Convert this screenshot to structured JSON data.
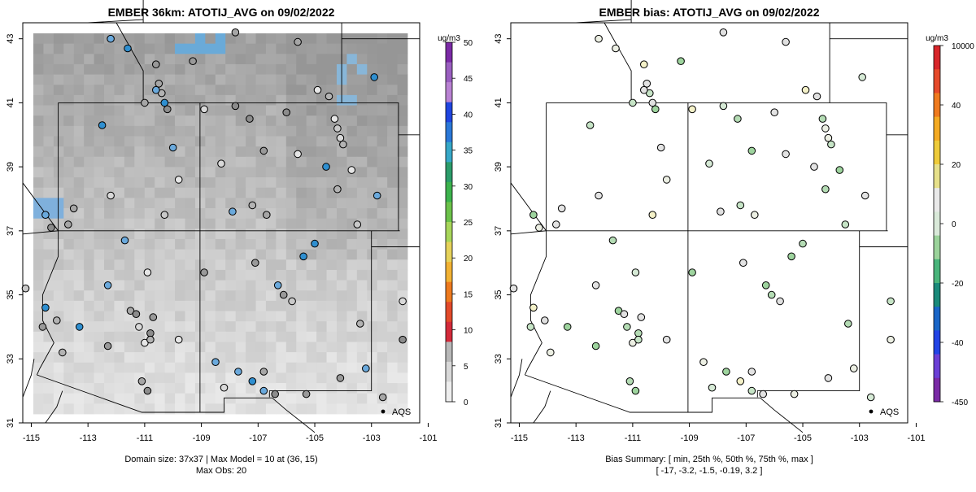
{
  "left": {
    "title": "EMBER 36km: ATOTIJ_AVG on 09/02/2022",
    "x_ticks": [
      "-115",
      "-113",
      "-111",
      "-109",
      "-107",
      "-105",
      "-103",
      "-101"
    ],
    "y_ticks": [
      "43",
      "41",
      "39",
      "37",
      "35",
      "33",
      "31"
    ],
    "caption_line1": "Domain size: 37x37 | Max Model = 10 at (36, 15)",
    "caption_line2": "Max Obs: 20",
    "legend_label": "AQS",
    "colorbar": {
      "unit": "ug/m3",
      "labels": [
        "50",
        "45",
        "40",
        "35",
        "30",
        "25",
        "20",
        "15",
        "10",
        "5",
        "0"
      ],
      "colors": [
        "#7b2aa6",
        "#9a5fc0",
        "#b982d3",
        "#1f45e0",
        "#2a78d8",
        "#36a8c8",
        "#2b9c6a",
        "#3cb34d",
        "#6cc24a",
        "#a8d65a",
        "#e6d25a",
        "#f2b233",
        "#ee7a1e",
        "#e34a2a",
        "#d42a3a",
        "#b8b8b8",
        "#d8d8d8",
        "#eeeeee"
      ]
    }
  },
  "right": {
    "title": "EMBER bias: ATOTIJ_AVG on 09/02/2022",
    "x_ticks": [
      "-115",
      "-113",
      "-111",
      "-109",
      "-107",
      "-105",
      "-103",
      "-101"
    ],
    "y_ticks": [
      "43",
      "41",
      "39",
      "37",
      "35",
      "33",
      "31"
    ],
    "caption_line1": "Bias Summary: [ min, 25th %, 50th %, 75th %, max ]",
    "caption_line2": "[ -17,  -3.2,  -1.5,  -0.19,  3.2 ]",
    "legend_label": "AQS",
    "colorbar": {
      "unit": "ug/m3",
      "labels": [
        "10000",
        "40",
        "20",
        "0",
        "-20",
        "-40",
        "-450"
      ],
      "colors": [
        "#d8262a",
        "#e64a2a",
        "#ef7a1e",
        "#f4aa22",
        "#eecb3a",
        "#e6e08a",
        "#e9e9e9",
        "#d9e9d9",
        "#9bd39b",
        "#49b57b",
        "#1a8a7a",
        "#1a66c8",
        "#2244e6",
        "#6b3fd6",
        "#7a2aa6"
      ]
    }
  },
  "map_bounds": {
    "lon": [
      -115.3,
      -101.3
    ],
    "lat": [
      31,
      43.5
    ]
  }
}
